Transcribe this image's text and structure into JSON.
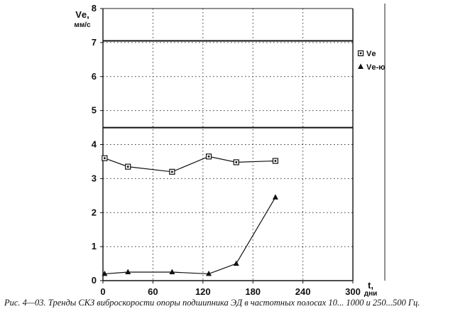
{
  "chart_data": {
    "type": "line",
    "xlabel": "t, дни",
    "xlabel_main": "t,",
    "xlabel_unit": "дни",
    "ylabel": "Vе, мм/с",
    "ylabel_main": "Vе,",
    "ylabel_unit": "мм/с",
    "xlim": [
      0,
      300
    ],
    "ylim": [
      0,
      8
    ],
    "x_ticks": [
      0,
      60,
      120,
      180,
      240,
      300
    ],
    "y_ticks": [
      0,
      1,
      2,
      3,
      4,
      5,
      6,
      7,
      8
    ],
    "grid": true,
    "legend_position": "right",
    "thresholds": [
      7.05,
      4.5
    ],
    "series": [
      {
        "name": "Vе",
        "marker": "square",
        "x": [
          2,
          30,
          83,
          127,
          160,
          207
        ],
        "y": [
          3.6,
          3.35,
          3.2,
          3.65,
          3.48,
          3.52
        ]
      },
      {
        "name": "Vе-ю",
        "marker": "triangle",
        "x": [
          2,
          30,
          83,
          127,
          160,
          207
        ],
        "y": [
          0.2,
          0.25,
          0.25,
          0.2,
          0.5,
          2.45
        ]
      }
    ]
  },
  "caption": "Рис. 4—03. Тренды СКЗ виброскорости опоры подшипника ЭД в частотных полосах 10... 1000 и 250...500 Гц."
}
